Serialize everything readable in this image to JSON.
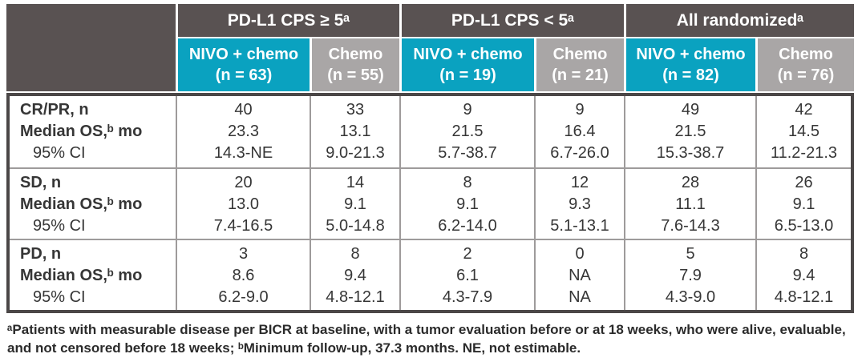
{
  "chart_data": {
    "type": "table",
    "column_groups": [
      {
        "label": "PD-L1 CPS ≥ 5ᵃ"
      },
      {
        "label": "PD-L1 CPS < 5ᵃ"
      },
      {
        "label": "All randomizedᵃ"
      }
    ],
    "arms": [
      {
        "drug": "NIVO + chemo",
        "n": "(n = 63)"
      },
      {
        "drug": "Chemo",
        "n": "(n = 55)"
      },
      {
        "drug": "NIVO + chemo",
        "n": "(n = 19)"
      },
      {
        "drug": "Chemo",
        "n": "(n = 21)"
      },
      {
        "drug": "NIVO + chemo",
        "n": "(n = 82)"
      },
      {
        "drug": "Chemo",
        "n": "(n = 76)"
      }
    ],
    "sections": [
      {
        "labels": [
          "CR/PR, n",
          "Median OS,ᵇ mo",
          "95% CI"
        ],
        "cells": [
          [
            "40",
            "23.3",
            "14.3-NE"
          ],
          [
            "33",
            "13.1",
            "9.0-21.3"
          ],
          [
            "9",
            "21.5",
            "5.7-38.7"
          ],
          [
            "9",
            "16.4",
            "6.7-26.0"
          ],
          [
            "49",
            "21.5",
            "15.3-38.7"
          ],
          [
            "42",
            "14.5",
            "11.2-21.3"
          ]
        ]
      },
      {
        "labels": [
          "SD, n",
          "Median OS,ᵇ mo",
          "95% CI"
        ],
        "cells": [
          [
            "20",
            "13.0",
            "7.4-16.5"
          ],
          [
            "14",
            "9.1",
            "5.0-14.8"
          ],
          [
            "8",
            "9.1",
            "6.2-14.0"
          ],
          [
            "12",
            "9.3",
            "5.1-13.1"
          ],
          [
            "28",
            "11.1",
            "7.6-14.3"
          ],
          [
            "26",
            "9.1",
            "6.5-13.0"
          ]
        ]
      },
      {
        "labels": [
          "PD, n",
          "Median OS,ᵇ mo",
          "95% CI"
        ],
        "cells": [
          [
            "3",
            "8.6",
            "6.2-9.0"
          ],
          [
            "8",
            "9.4",
            "4.8-12.1"
          ],
          [
            "2",
            "6.1",
            "4.3-7.9"
          ],
          [
            "0",
            "NA",
            "NA"
          ],
          [
            "5",
            "7.9",
            "4.3-9.0"
          ],
          [
            "8",
            "9.4",
            "4.8-12.1"
          ]
        ]
      }
    ],
    "footnote": {
      "line1": "ᵃPatients with measurable disease per BICR at baseline, with a tumor evaluation before or at 18 weeks, who were alive, evaluable,",
      "line2": "and not censored before 18 weeks; ᵇMinimum follow-up, 37.3 months. NE, not estimable."
    },
    "colors": {
      "header_dark": "#595252",
      "nivo_teal": "#0AA2C0",
      "chemo_gray": "#A9A6A6",
      "outer_border": "#4B4747",
      "inner_border": "#9E9B9B",
      "text": "#363636"
    }
  }
}
